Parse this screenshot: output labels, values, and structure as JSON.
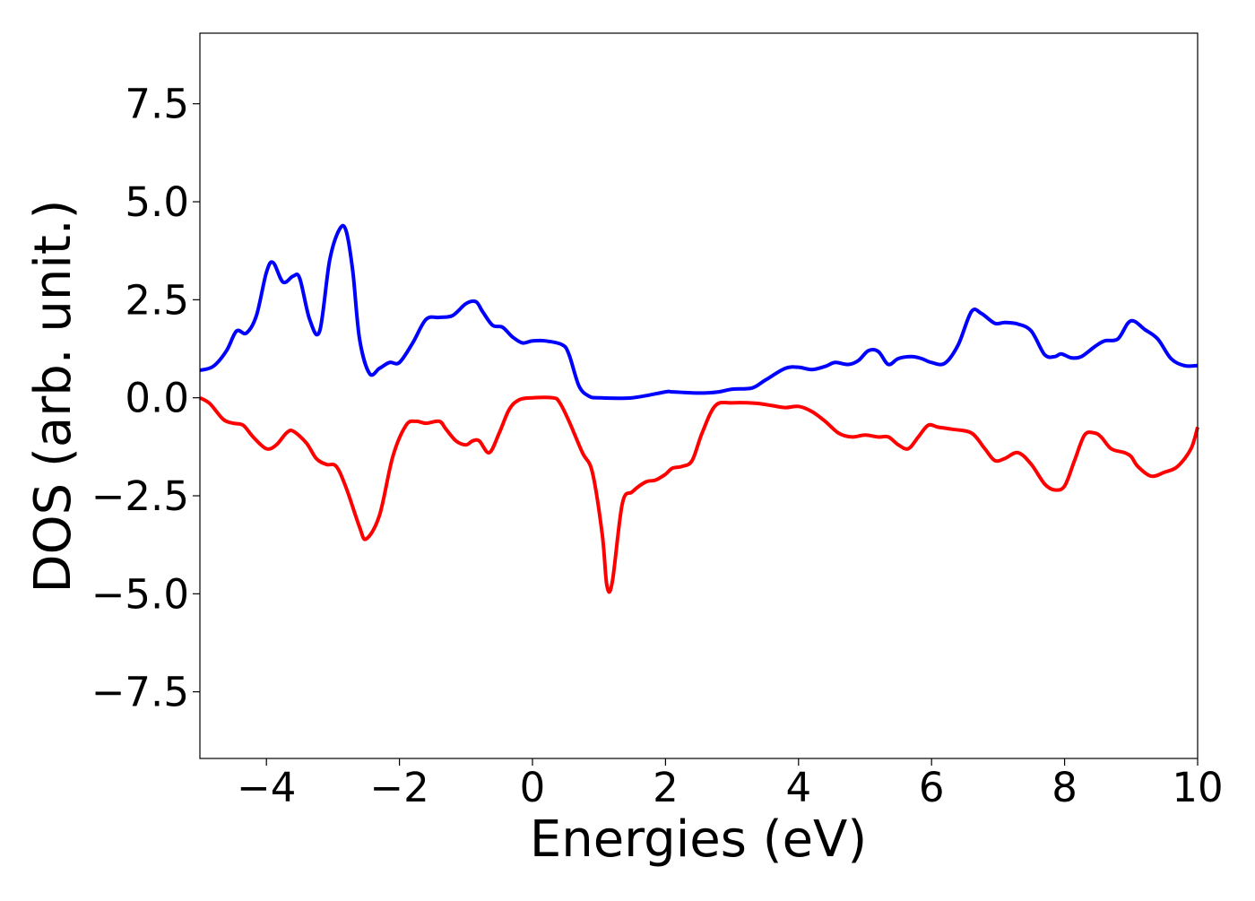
{
  "chart_data": {
    "type": "line",
    "title": "",
    "xlabel": "Energies (eV)",
    "ylabel": "DOS (arb. unit.)",
    "xlim": [
      -5,
      10
    ],
    "ylim": [
      -9.2,
      9.3
    ],
    "xticks": [
      -4,
      -2,
      0,
      2,
      4,
      6,
      8,
      10
    ],
    "xtick_labels": [
      "−4",
      "−2",
      "0",
      "2",
      "4",
      "6",
      "8",
      "10"
    ],
    "yticks": [
      -7.5,
      -5.0,
      -2.5,
      0.0,
      2.5,
      5.0,
      7.5
    ],
    "ytick_labels": [
      "−7.5",
      "−5.0",
      "−2.5",
      "0.0",
      "2.5",
      "5.0",
      "7.5"
    ],
    "grid": false,
    "series": [
      {
        "color": "#0000ff",
        "x": [
          -5,
          -4.8,
          -4.6,
          -4.45,
          -4.3,
          -4.15,
          -4.0,
          -3.9,
          -3.75,
          -3.6,
          -3.5,
          -3.35,
          -3.2,
          -3.05,
          -2.9,
          -2.8,
          -2.7,
          -2.6,
          -2.45,
          -2.3,
          -2.15,
          -2.0,
          -1.8,
          -1.6,
          -1.4,
          -1.2,
          -1.0,
          -0.85,
          -0.75,
          -0.6,
          -0.45,
          -0.3,
          -0.15,
          0.0,
          0.2,
          0.45,
          0.55,
          0.7,
          0.85,
          1.0,
          1.5,
          2.0,
          2.1,
          2.5,
          2.8,
          3.0,
          3.3,
          3.5,
          3.8,
          4.0,
          4.2,
          4.4,
          4.55,
          4.75,
          4.9,
          5.05,
          5.2,
          5.35,
          5.5,
          5.7,
          5.85,
          6.0,
          6.2,
          6.4,
          6.6,
          6.75,
          6.95,
          7.1,
          7.3,
          7.5,
          7.7,
          7.85,
          7.95,
          8.1,
          8.25,
          8.45,
          8.6,
          8.8,
          8.95,
          9.05,
          9.2,
          9.4,
          9.6,
          9.8,
          10
        ],
        "y": [
          0.7,
          0.8,
          1.2,
          1.7,
          1.65,
          2.1,
          3.2,
          3.45,
          2.95,
          3.1,
          3.05,
          2.0,
          1.7,
          3.5,
          4.3,
          4.25,
          3.2,
          1.5,
          0.62,
          0.75,
          0.9,
          0.9,
          1.4,
          2.0,
          2.05,
          2.1,
          2.4,
          2.45,
          2.2,
          1.85,
          1.8,
          1.55,
          1.4,
          1.45,
          1.45,
          1.35,
          1.1,
          0.3,
          0.04,
          0.0,
          0.0,
          0.15,
          0.15,
          0.12,
          0.15,
          0.22,
          0.25,
          0.45,
          0.75,
          0.78,
          0.72,
          0.8,
          0.9,
          0.85,
          0.95,
          1.2,
          1.18,
          0.85,
          1.0,
          1.05,
          1.0,
          0.9,
          0.88,
          1.35,
          2.2,
          2.15,
          1.9,
          1.92,
          1.88,
          1.7,
          1.1,
          1.05,
          1.12,
          1.02,
          1.05,
          1.3,
          1.45,
          1.5,
          1.9,
          1.95,
          1.75,
          1.5,
          1.0,
          0.82,
          0.82
        ]
      },
      {
        "color": "#ff0000",
        "x": [
          -5,
          -4.85,
          -4.65,
          -4.5,
          -4.35,
          -4.2,
          -4.0,
          -3.85,
          -3.7,
          -3.6,
          -3.4,
          -3.25,
          -3.1,
          -2.95,
          -2.8,
          -2.6,
          -2.5,
          -2.3,
          -2.1,
          -1.9,
          -1.75,
          -1.6,
          -1.4,
          -1.3,
          -1.15,
          -1.0,
          -0.9,
          -0.8,
          -0.65,
          -0.5,
          -0.35,
          -0.2,
          0.0,
          0.3,
          0.4,
          0.55,
          0.75,
          0.9,
          1.05,
          1.12,
          1.2,
          1.35,
          1.5,
          1.7,
          1.85,
          2.0,
          2.1,
          2.25,
          2.4,
          2.55,
          2.75,
          3.0,
          3.35,
          3.6,
          3.8,
          4.0,
          4.2,
          4.4,
          4.6,
          4.8,
          5.0,
          5.2,
          5.35,
          5.5,
          5.65,
          5.8,
          5.95,
          6.1,
          6.3,
          6.6,
          6.8,
          6.95,
          7.1,
          7.3,
          7.5,
          7.7,
          7.85,
          8.0,
          8.15,
          8.3,
          8.45,
          8.55,
          8.7,
          8.9,
          9.0,
          9.1,
          9.3,
          9.5,
          9.7,
          9.9,
          10
        ],
        "y": [
          0.0,
          -0.15,
          -0.55,
          -0.65,
          -0.7,
          -1.0,
          -1.3,
          -1.2,
          -0.9,
          -0.85,
          -1.15,
          -1.55,
          -1.7,
          -1.75,
          -2.3,
          -3.3,
          -3.6,
          -3.0,
          -1.5,
          -0.7,
          -0.6,
          -0.65,
          -0.6,
          -0.8,
          -1.1,
          -1.2,
          -1.1,
          -1.1,
          -1.4,
          -0.9,
          -0.3,
          -0.05,
          0.0,
          0.0,
          -0.1,
          -0.6,
          -1.4,
          -1.9,
          -3.5,
          -4.8,
          -4.7,
          -2.7,
          -2.4,
          -2.15,
          -2.1,
          -1.95,
          -1.8,
          -1.75,
          -1.6,
          -0.9,
          -0.2,
          -0.13,
          -0.14,
          -0.2,
          -0.25,
          -0.22,
          -0.35,
          -0.6,
          -0.9,
          -1.0,
          -0.95,
          -1.0,
          -1.0,
          -1.2,
          -1.3,
          -1.0,
          -0.7,
          -0.75,
          -0.8,
          -0.9,
          -1.3,
          -1.6,
          -1.55,
          -1.4,
          -1.7,
          -2.2,
          -2.35,
          -2.25,
          -1.6,
          -0.95,
          -0.9,
          -1.0,
          -1.3,
          -1.4,
          -1.5,
          -1.75,
          -2.0,
          -1.9,
          -1.75,
          -1.3,
          -0.75
        ]
      }
    ]
  }
}
